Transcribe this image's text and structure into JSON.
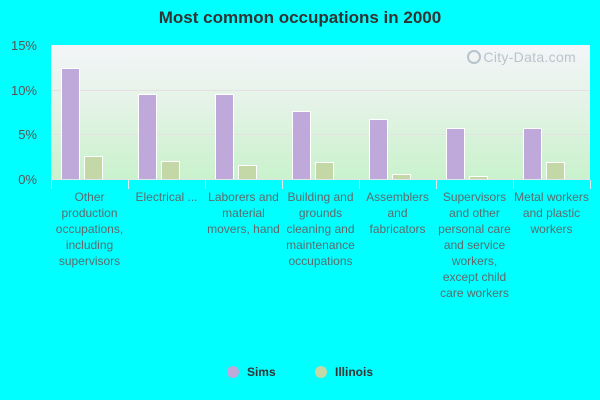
{
  "title": "Most common occupations in 2000",
  "watermark": "City-Data.com",
  "colors": {
    "sims": "#bea9da",
    "illinois": "#c4d8a7",
    "background": "#00ffff"
  },
  "legend": [
    {
      "name": "Sims",
      "color": "#bea9da"
    },
    {
      "name": "Illinois",
      "color": "#c4d8a7"
    }
  ],
  "y_ticks": [
    "15%",
    "10%",
    "5%",
    "0%"
  ],
  "chart_data": {
    "type": "bar",
    "title": "Most common occupations in 2000",
    "xlabel": "",
    "ylabel": "",
    "ylim": [
      0,
      15
    ],
    "y_ticks": [
      0,
      5,
      10,
      15
    ],
    "grid": true,
    "legend_position": "bottom",
    "categories": [
      "Other production occupations, including supervisors",
      "Electrical ...",
      "Laborers and material movers, hand",
      "Building and grounds cleaning and maintenance occupations",
      "Assemblers and fabricators",
      "Supervisors and other personal care and service workers, except child care workers",
      "Metal workers and plastic workers"
    ],
    "series": [
      {
        "name": "Sims",
        "color": "#bea9da",
        "values": [
          12.4,
          9.5,
          9.5,
          7.6,
          6.7,
          5.7,
          5.7
        ]
      },
      {
        "name": "Illinois",
        "color": "#c4d8a7",
        "values": [
          2.6,
          2.0,
          1.6,
          1.9,
          0.6,
          0.3,
          1.9
        ]
      }
    ]
  }
}
